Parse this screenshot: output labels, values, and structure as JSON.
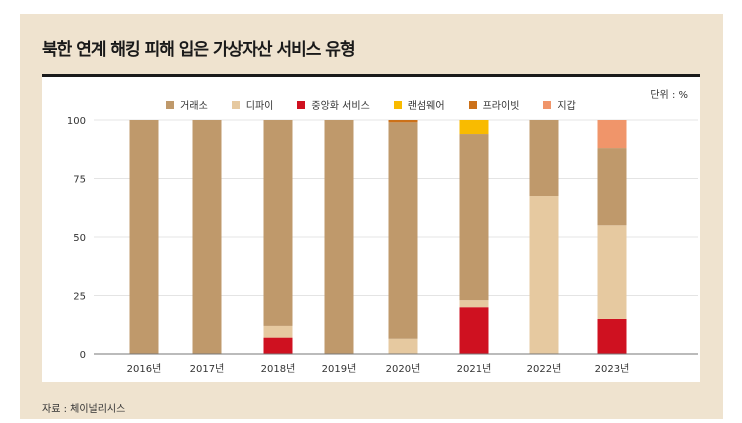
{
  "title": "북한 연계 해킹 피해 입은 가상자산 서비스 유형",
  "unit": "단위 : %",
  "source": "자료 : 체이널리시스",
  "chart_data": {
    "type": "bar",
    "stacked": true,
    "categories": [
      "2016년",
      "2017년",
      "2018년",
      "2019년",
      "2020년",
      "2021년",
      "2022년",
      "2023년"
    ],
    "ylim": [
      0,
      100
    ],
    "yticks": [
      "0",
      "25",
      "50",
      "75",
      "100"
    ],
    "grid": true,
    "legend": "top",
    "series": [
      {
        "name": "중앙화 서비스",
        "color": "#cf1120",
        "values": [
          0,
          0,
          7,
          0,
          0,
          20,
          0,
          15
        ]
      },
      {
        "name": "디파이",
        "color": "#e6c9a0",
        "values": [
          0,
          0,
          5,
          0,
          6.5,
          3,
          67.5,
          40
        ]
      },
      {
        "name": "거래소",
        "color": "#bf996b",
        "values": [
          100,
          100,
          88,
          100,
          92.5,
          71,
          32.5,
          33
        ]
      },
      {
        "name": "랜섬웨어",
        "color": "#f9bb00",
        "values": [
          0,
          0,
          0,
          0,
          0,
          6,
          0,
          0
        ]
      },
      {
        "name": "프라이빗",
        "color": "#cc7119",
        "values": [
          0,
          0,
          0,
          0,
          1,
          0,
          0,
          0
        ]
      },
      {
        "name": "지갑",
        "color": "#f0956a",
        "values": [
          0,
          0,
          0,
          0,
          0,
          0,
          0,
          12
        ]
      }
    ],
    "legend_order": [
      2,
      1,
      0,
      3,
      4,
      5
    ]
  }
}
